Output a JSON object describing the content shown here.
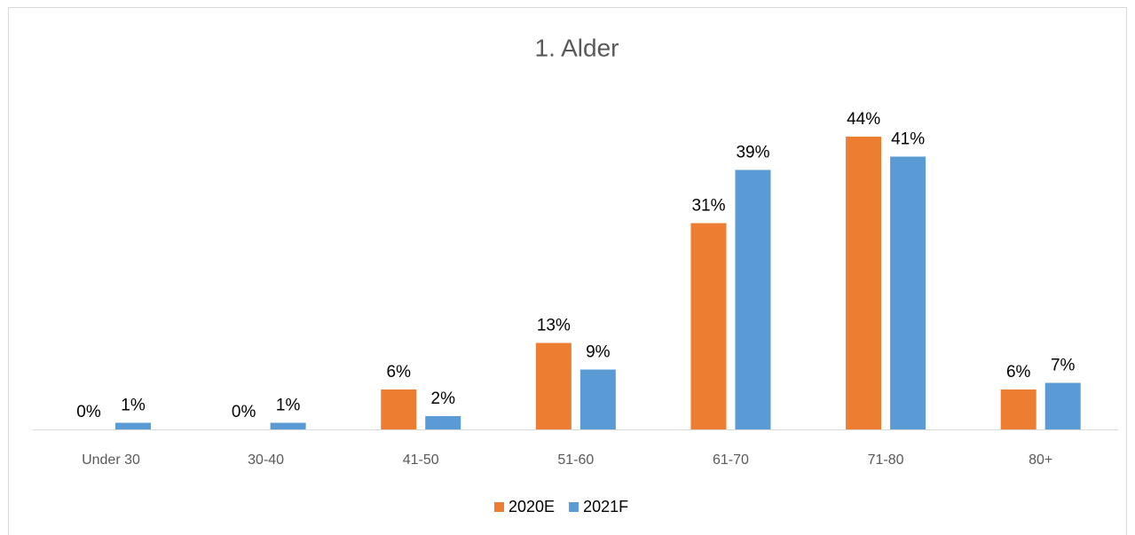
{
  "chart_data": {
    "type": "bar",
    "title": "1. Alder",
    "categories": [
      "Under 30",
      "30-40",
      "41-50",
      "51-60",
      "61-70",
      "71-80",
      "80+"
    ],
    "series": [
      {
        "name": "2020E",
        "color": "#ed7d31",
        "values": [
          0,
          0,
          6,
          13,
          31,
          44,
          6
        ],
        "value_labels": [
          "0%",
          "0%",
          "6%",
          "13%",
          "31%",
          "44%",
          "6%"
        ]
      },
      {
        "name": "2021F",
        "color": "#5b9bd5",
        "values": [
          1,
          1,
          2,
          9,
          39,
          41,
          7
        ],
        "value_labels": [
          "1%",
          "1%",
          "2%",
          "9%",
          "39%",
          "41%",
          "7%"
        ]
      }
    ],
    "legend": "bottom"
  }
}
